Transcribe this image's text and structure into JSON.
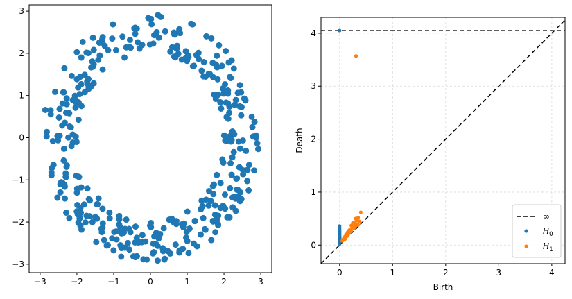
{
  "chart_data": [
    {
      "type": "scatter",
      "title": "",
      "xlabel": "",
      "ylabel": "",
      "xlim": [
        -3.3,
        3.3
      ],
      "ylim": [
        -3.2,
        3.15
      ],
      "xticks": [
        -3,
        -2,
        -1,
        0,
        1,
        2,
        3
      ],
      "yticks": [
        -3,
        -2,
        -1,
        0,
        1,
        2,
        3
      ],
      "xtick_labels": [
        "−3",
        "−2",
        "−1",
        "0",
        "1",
        "2",
        "3"
      ],
      "ytick_labels": [
        "−3",
        "−2",
        "−1",
        "0",
        "1",
        "2",
        "3"
      ],
      "grid": false,
      "series": [
        {
          "color": "#1f77b4",
          "distribution": "annulus",
          "inner_radius": 2.0,
          "outer_radius": 2.95,
          "point_count": 400
        }
      ]
    },
    {
      "type": "scatter",
      "title": "",
      "xlabel": "Birth",
      "ylabel": "Death",
      "xlim": [
        -0.35,
        4.25
      ],
      "ylim": [
        -0.35,
        4.3
      ],
      "xticks": [
        0,
        1,
        2,
        3,
        4
      ],
      "yticks": [
        0,
        1,
        2,
        3,
        4
      ],
      "xtick_labels": [
        "0",
        "1",
        "2",
        "3",
        "4"
      ],
      "ytick_labels": [
        "0",
        "1",
        "2",
        "3",
        "4"
      ],
      "grid": true,
      "legend_position": "lower-right",
      "infinity_value": 4.05,
      "legend": [
        {
          "label": "∞",
          "style": "dashed-line",
          "color": "#000000"
        },
        {
          "label": "H",
          "subscript": "0",
          "style": "point",
          "color": "#1f77b4"
        },
        {
          "label": "H",
          "subscript": "1",
          "style": "point",
          "color": "#ff7f0e"
        }
      ],
      "series": [
        {
          "name": "H0",
          "color": "#1f77b4",
          "points": [
            [
              0,
              4.05
            ],
            [
              0,
              0.36
            ],
            [
              0,
              0.33
            ],
            [
              0,
              0.3
            ],
            [
              0,
              0.28
            ],
            [
              0,
              0.26
            ],
            [
              0,
              0.24
            ],
            [
              0,
              0.22
            ],
            [
              0,
              0.2
            ],
            [
              0,
              0.18
            ],
            [
              0,
              0.17
            ],
            [
              0,
              0.16
            ],
            [
              0,
              0.15
            ],
            [
              0,
              0.14
            ],
            [
              0,
              0.13
            ],
            [
              0,
              0.12
            ],
            [
              0,
              0.11
            ],
            [
              0,
              0.1
            ],
            [
              0,
              0.09
            ],
            [
              0,
              0.08
            ],
            [
              0,
              0.07
            ],
            [
              0,
              0.06
            ],
            [
              0,
              0.05
            ],
            [
              0,
              0.04
            ],
            [
              0,
              0.03
            ],
            [
              0,
              0.02
            ]
          ]
        },
        {
          "name": "H1",
          "color": "#ff7f0e",
          "points": [
            [
              0.31,
              3.57
            ],
            [
              0.4,
              0.62
            ],
            [
              0.35,
              0.52
            ],
            [
              0.3,
              0.5
            ],
            [
              0.33,
              0.47
            ],
            [
              0.37,
              0.45
            ],
            [
              0.28,
              0.43
            ],
            [
              0.25,
              0.42
            ],
            [
              0.32,
              0.4
            ],
            [
              0.27,
              0.38
            ],
            [
              0.22,
              0.37
            ],
            [
              0.3,
              0.36
            ],
            [
              0.35,
              0.38
            ],
            [
              0.24,
              0.33
            ],
            [
              0.2,
              0.3
            ],
            [
              0.27,
              0.32
            ],
            [
              0.18,
              0.28
            ],
            [
              0.22,
              0.27
            ],
            [
              0.15,
              0.24
            ],
            [
              0.19,
              0.23
            ],
            [
              0.12,
              0.2
            ],
            [
              0.16,
              0.19
            ],
            [
              0.1,
              0.16
            ],
            [
              0.14,
              0.17
            ],
            [
              0.08,
              0.13
            ],
            [
              0.11,
              0.12
            ],
            [
              0.06,
              0.1
            ],
            [
              0.09,
              0.1
            ],
            [
              0.05,
              0.08
            ],
            [
              0.38,
              0.44
            ],
            [
              0.29,
              0.35
            ],
            [
              0.21,
              0.26
            ]
          ]
        }
      ]
    }
  ]
}
